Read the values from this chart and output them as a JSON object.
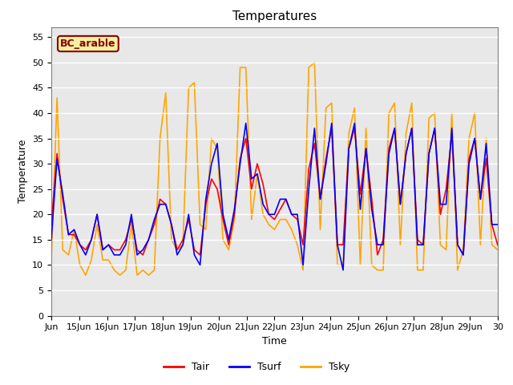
{
  "title": "Temperatures",
  "xlabel": "Time",
  "ylabel": "Temperature",
  "ylim": [
    0,
    57
  ],
  "yticks": [
    0,
    5,
    10,
    15,
    20,
    25,
    30,
    35,
    40,
    45,
    50,
    55
  ],
  "xtick_labels": [
    "Jun",
    "15Jun",
    "16Jun",
    "17Jun",
    "18Jun",
    "19Jun",
    "20Jun",
    "21Jun",
    "22Jun",
    "23Jun",
    "24Jun",
    "25Jun",
    "26Jun",
    "27Jun",
    "28Jun",
    "29Jun",
    "30"
  ],
  "legend_label": "BC_arable",
  "line_labels": [
    "Tair",
    "Tsurf",
    "Tsky"
  ],
  "line_colors": [
    "red",
    "blue",
    "orange"
  ],
  "bg_color": "#e8e8e8",
  "tair": [
    18,
    32,
    23,
    16,
    16,
    14,
    13,
    15,
    20,
    13,
    14,
    13,
    13,
    15,
    19,
    13,
    12,
    15,
    18,
    23,
    22,
    18,
    13,
    15,
    19,
    13,
    12,
    22,
    27,
    25,
    19,
    14,
    20,
    31,
    35,
    25,
    30,
    26,
    20,
    19,
    21,
    23,
    20,
    19,
    14,
    29,
    34,
    23,
    31,
    37,
    14,
    14,
    33,
    37,
    24,
    33,
    23,
    12,
    15,
    33,
    37,
    22,
    32,
    37,
    15,
    14,
    32,
    37,
    20,
    25,
    36,
    14,
    12,
    31,
    35,
    23,
    31,
    18,
    14
  ],
  "tsurf": [
    15,
    31,
    24,
    16,
    17,
    14,
    12,
    15,
    20,
    13,
    14,
    12,
    12,
    14,
    20,
    12,
    13,
    15,
    19,
    22,
    22,
    18,
    12,
    14,
    20,
    12,
    10,
    23,
    30,
    34,
    20,
    15,
    21,
    30,
    38,
    27,
    28,
    22,
    20,
    20,
    23,
    23,
    20,
    20,
    10,
    25,
    37,
    23,
    30,
    38,
    14,
    9,
    33,
    38,
    21,
    33,
    21,
    14,
    14,
    32,
    37,
    22,
    32,
    37,
    14,
    14,
    32,
    37,
    22,
    22,
    37,
    14,
    12,
    30,
    35,
    23,
    34,
    18,
    18
  ],
  "tsky": [
    11,
    43,
    13,
    12,
    17,
    10,
    8,
    11,
    18,
    11,
    11,
    9,
    8,
    9,
    18,
    8,
    9,
    8,
    9,
    35,
    44,
    15,
    13,
    14,
    45,
    46,
    18,
    17,
    35,
    33,
    15,
    13,
    19,
    49,
    49,
    19,
    28,
    20,
    18,
    17,
    19,
    19,
    17,
    14,
    9,
    49,
    50,
    17,
    41,
    42,
    10,
    10,
    36,
    41,
    10,
    37,
    10,
    9,
    9,
    40,
    42,
    14,
    36,
    42,
    9,
    9,
    39,
    40,
    14,
    13,
    40,
    9,
    13,
    35,
    40,
    14,
    35,
    14,
    13
  ]
}
